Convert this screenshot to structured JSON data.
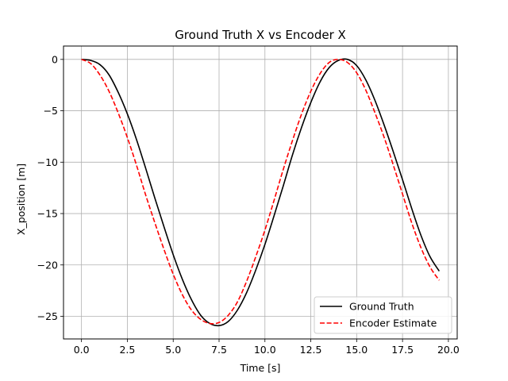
{
  "chart_data": {
    "type": "line",
    "title": "Ground Truth X vs Encoder X",
    "xlabel": "Time [s]",
    "ylabel": "X_position [m]",
    "xlim": [
      -0.98,
      20.48
    ],
    "ylim": [
      -27.2,
      1.3
    ],
    "xticks": [
      0,
      2.5,
      5,
      7.5,
      10,
      12.5,
      15,
      17.5,
      20
    ],
    "xtick_labels": [
      "0.0",
      "2.5",
      "5.0",
      "7.5",
      "10.0",
      "12.5",
      "15.0",
      "17.5",
      "20.0"
    ],
    "yticks": [
      0,
      -5,
      -10,
      -15,
      -20,
      -25
    ],
    "ytick_labels": [
      "0",
      "−5",
      "−10",
      "−15",
      "−20",
      "−25"
    ],
    "grid": true,
    "legend_position": "lower-right",
    "series": [
      {
        "name": "Ground Truth",
        "color": "#000000",
        "style": "solid",
        "x": [
          0.0,
          0.5,
          1.0,
          1.5,
          2.0,
          2.5,
          3.0,
          3.5,
          4.0,
          4.5,
          5.0,
          5.5,
          6.0,
          6.5,
          7.0,
          7.5,
          8.0,
          8.5,
          9.0,
          9.5,
          10.0,
          10.5,
          11.0,
          11.5,
          12.0,
          12.5,
          13.0,
          13.5,
          14.0,
          14.5,
          15.0,
          15.5,
          16.0,
          16.5,
          17.0,
          17.5,
          18.0,
          18.5,
          19.0,
          19.5
        ],
        "y": [
          0.0,
          -0.1,
          -0.5,
          -1.5,
          -3.2,
          -5.3,
          -7.8,
          -10.6,
          -13.5,
          -16.3,
          -19.0,
          -21.4,
          -23.4,
          -24.9,
          -25.7,
          -25.9,
          -25.5,
          -24.4,
          -22.7,
          -20.5,
          -18.0,
          -15.2,
          -12.3,
          -9.3,
          -6.6,
          -4.2,
          -2.2,
          -0.8,
          -0.1,
          0.0,
          -0.6,
          -2.0,
          -4.0,
          -6.4,
          -9.0,
          -11.7,
          -14.5,
          -17.1,
          -19.2,
          -20.6
        ]
      },
      {
        "name": "Encoder Estimate",
        "color": "#ff0000",
        "style": "dashed",
        "x": [
          0.0,
          0.5,
          1.0,
          1.5,
          2.0,
          2.5,
          3.0,
          3.5,
          4.0,
          4.5,
          5.0,
          5.5,
          6.0,
          6.5,
          7.0,
          7.5,
          8.0,
          8.5,
          9.0,
          9.5,
          10.0,
          10.5,
          11.0,
          11.5,
          12.0,
          12.5,
          13.0,
          13.5,
          14.0,
          14.5,
          15.0,
          15.5,
          16.0,
          16.5,
          17.0,
          17.5,
          18.0,
          18.5,
          19.0,
          19.5
        ],
        "y": [
          0.0,
          -0.4,
          -1.5,
          -3.1,
          -5.2,
          -7.6,
          -10.3,
          -13.2,
          -15.9,
          -18.5,
          -20.9,
          -22.9,
          -24.4,
          -25.3,
          -25.7,
          -25.6,
          -24.9,
          -23.6,
          -21.6,
          -19.2,
          -16.6,
          -13.7,
          -10.7,
          -7.9,
          -5.3,
          -3.1,
          -1.4,
          -0.3,
          0.0,
          -0.3,
          -1.3,
          -3.0,
          -5.2,
          -7.6,
          -10.3,
          -13.1,
          -15.9,
          -18.3,
          -20.2,
          -21.5
        ]
      }
    ]
  }
}
